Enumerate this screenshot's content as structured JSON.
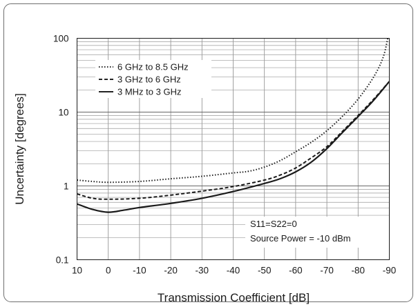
{
  "chart_data": {
    "type": "line",
    "title": "",
    "xlabel": "Transmission Coefficient [dB]",
    "ylabel": "Uncertainty [degrees]",
    "xlim": [
      10,
      -90
    ],
    "ylim": [
      0.1,
      100
    ],
    "yscale": "log",
    "grid": true,
    "legend_position": "top-left",
    "x_ticks": [
      10,
      0,
      -10,
      -20,
      -30,
      -40,
      -50,
      -60,
      -70,
      -80,
      -90
    ],
    "x_tick_labels": [
      "10",
      "0",
      "-10",
      "-20",
      "-30",
      "-40",
      "-50",
      "-60",
      "-70",
      "-80",
      "-90"
    ],
    "y_ticks": [
      0.1,
      1,
      10,
      100
    ],
    "y_tick_labels": [
      "0.1",
      "1",
      "10",
      "100"
    ],
    "series": [
      {
        "name": "6 GHz to 8.5 GHz",
        "style": "dotted",
        "points": [
          [
            10,
            1.2
          ],
          [
            5,
            1.15
          ],
          [
            0,
            1.12
          ],
          [
            -10,
            1.15
          ],
          [
            -20,
            1.25
          ],
          [
            -30,
            1.35
          ],
          [
            -40,
            1.5
          ],
          [
            -45,
            1.58
          ],
          [
            -50,
            1.8
          ],
          [
            -55,
            2.2
          ],
          [
            -60,
            2.9
          ],
          [
            -65,
            3.9
          ],
          [
            -70,
            5.6
          ],
          [
            -75,
            8.8
          ],
          [
            -80,
            15
          ],
          [
            -85,
            30
          ],
          [
            -88,
            55
          ],
          [
            -89.5,
            100
          ]
        ]
      },
      {
        "name": "3 GHz to 6 GHz",
        "style": "dashed",
        "points": [
          [
            10,
            0.78
          ],
          [
            5,
            0.68
          ],
          [
            0,
            0.66
          ],
          [
            -10,
            0.68
          ],
          [
            -20,
            0.75
          ],
          [
            -30,
            0.85
          ],
          [
            -40,
            0.98
          ],
          [
            -50,
            1.2
          ],
          [
            -55,
            1.4
          ],
          [
            -60,
            1.75
          ],
          [
            -65,
            2.4
          ],
          [
            -70,
            3.4
          ],
          [
            -75,
            5.5
          ],
          [
            -80,
            9
          ],
          [
            -85,
            15
          ],
          [
            -90,
            26
          ]
        ]
      },
      {
        "name": "3 MHz to 3 GHz",
        "style": "solid",
        "points": [
          [
            10,
            0.57
          ],
          [
            5,
            0.48
          ],
          [
            0,
            0.44
          ],
          [
            -5,
            0.47
          ],
          [
            -10,
            0.51
          ],
          [
            -20,
            0.58
          ],
          [
            -30,
            0.68
          ],
          [
            -40,
            0.84
          ],
          [
            -50,
            1.08
          ],
          [
            -55,
            1.25
          ],
          [
            -60,
            1.55
          ],
          [
            -65,
            2.1
          ],
          [
            -70,
            3.2
          ],
          [
            -75,
            5.3
          ],
          [
            -80,
            8.7
          ],
          [
            -85,
            14.5
          ],
          [
            -90,
            26
          ]
        ]
      }
    ],
    "annotations": [
      "S11=S22=0",
      "Source Power = -10 dBm"
    ]
  }
}
